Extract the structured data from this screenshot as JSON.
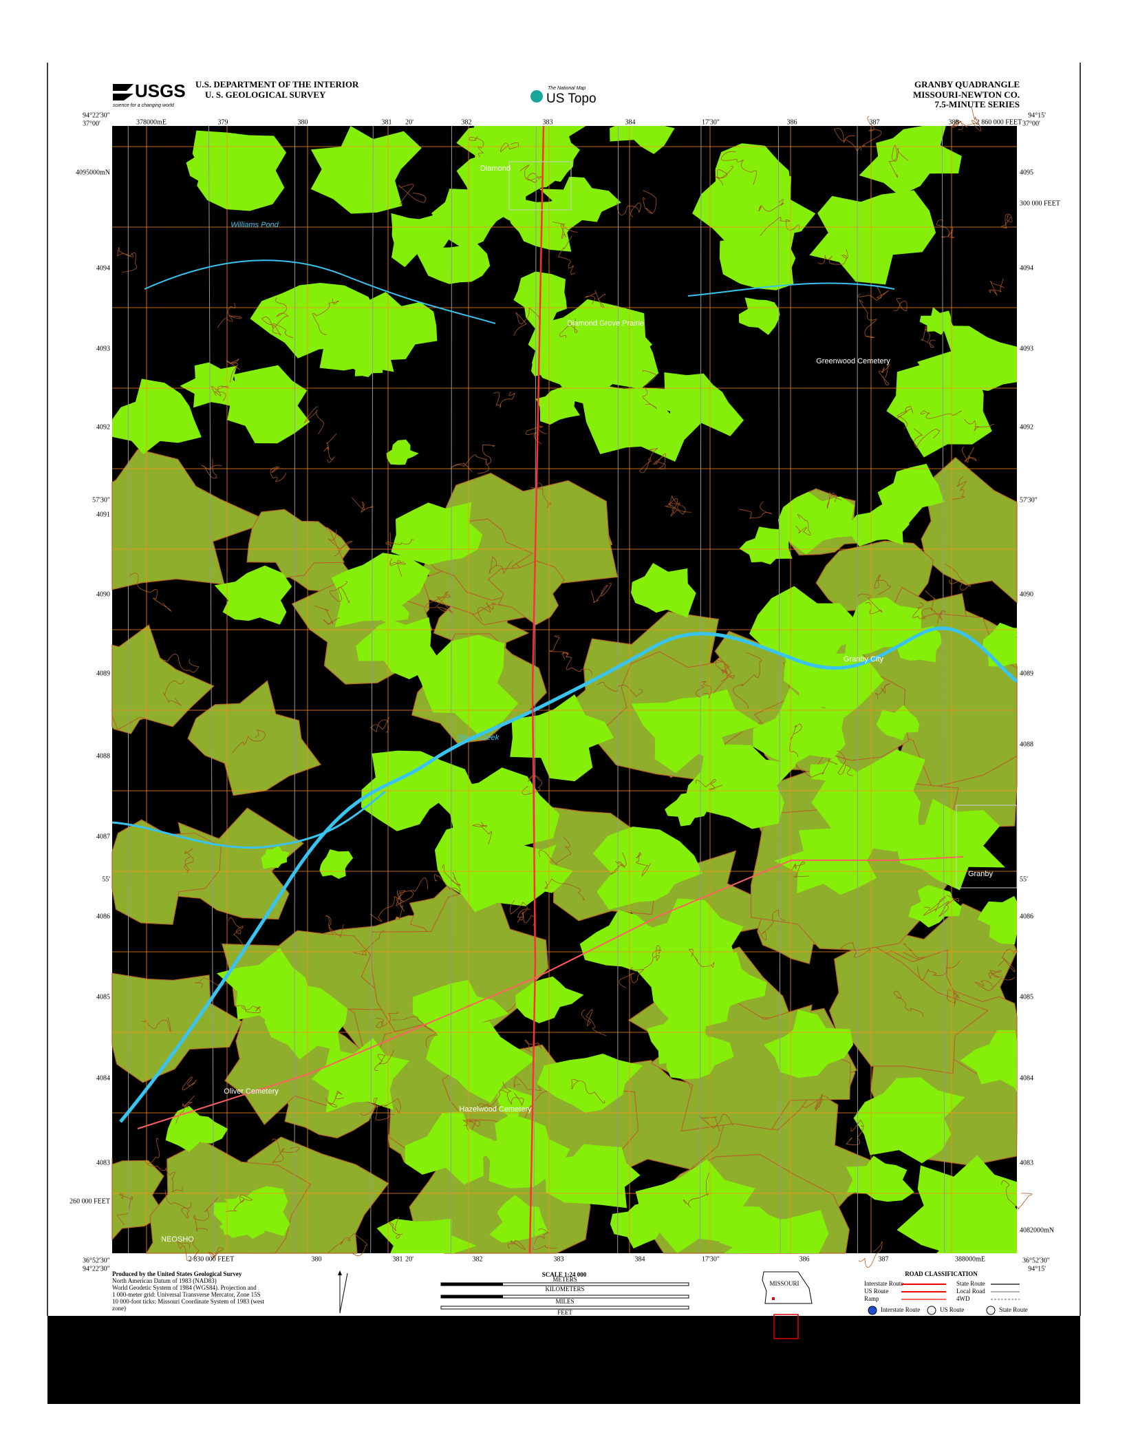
{
  "header": {
    "logo": "USGS",
    "logo_tagline": "science for a changing world",
    "agency": "U.S. DEPARTMENT OF THE INTERIOR",
    "bureau": "U. S. GEOLOGICAL SURVEY",
    "product_small": "The National Map",
    "product": "US Topo",
    "title": "GRANBY QUADRANGLE",
    "state_county": "MISSOURI-NEWTON CO.",
    "series": "7.5-MINUTE SERIES"
  },
  "corners": {
    "top_left_lon": "94°22'30\"",
    "top_left_lat": "37°00'",
    "top_right_lon": "94°15'",
    "top_right_lat": "37°00'",
    "bottom_left_lon": "94°22'30\"",
    "bottom_left_lat": "36°52'30\"",
    "bottom_right_lon": "94°15'",
    "bottom_right_lat": "36°52'30\""
  },
  "top_ticks": [
    "378000mE",
    "379",
    "380",
    "381",
    "20'",
    "382",
    "383",
    "384",
    "17'30\"",
    "386",
    "387",
    "388",
    "2 860 000 FEET"
  ],
  "bottom_ticks": [
    "2 830 000 FEET",
    "380",
    "381",
    "20'",
    "382",
    "383",
    "384",
    "17'30\"",
    "386",
    "387",
    "388000mE"
  ],
  "left_ticks": [
    "4095000mN",
    "4094",
    "4093",
    "4092",
    "57'30\"",
    "4091",
    "4090",
    "4089",
    "4088",
    "4087",
    "55'",
    "4086",
    "4085",
    "4084",
    "4083",
    "260 000 FEET"
  ],
  "right_ticks": [
    "4095",
    "300 000 FEET",
    "4094",
    "4093",
    "4092",
    "57'30\"",
    "4090",
    "4089",
    "4088",
    "55'",
    "4086",
    "4085",
    "4084",
    "4083",
    "4082000mN"
  ],
  "places": [
    {
      "label": "Diamond",
      "kind": "place"
    },
    {
      "label": "Williams Pond",
      "kind": "water"
    },
    {
      "label": "Diamond Grove Prairie",
      "kind": "place"
    },
    {
      "label": "Greenwood Cemetery",
      "kind": "place"
    },
    {
      "label": "Granby City",
      "kind": "place"
    },
    {
      "label": "Shoal Creek",
      "kind": "water"
    },
    {
      "label": "Granby",
      "kind": "place"
    },
    {
      "label": "Hazelwood Cemetery",
      "kind": "place"
    },
    {
      "label": "Oliver Cemetery",
      "kind": "place"
    },
    {
      "label": "NEOSHO",
      "kind": "place"
    }
  ],
  "footer": {
    "credits": [
      "Produced by the United States Geological Survey",
      "North American Datum of 1983 (NAD83)",
      "World Geodetic System of 1984 (WGS84). Projection and",
      "1 000-meter grid: Universal Transverse Mercator, Zone 15S",
      "10 000-foot ticks: Missouri Coordinate System of 1983 (west",
      "zone)"
    ],
    "scale": "SCALE 1:24 000",
    "scale_units": [
      "KILOMETERS",
      "METERS",
      "MILES",
      "FEET"
    ],
    "state": "MISSOURI",
    "road_title": "ROAD CLASSIFICATION",
    "roads_left": [
      "Interstate Route",
      "US Route",
      "Ramp"
    ],
    "roads_right": [
      "State Route",
      "Local Road",
      "4WD"
    ],
    "shields": [
      "Interstate Route",
      "US Route",
      "State Route"
    ]
  }
}
